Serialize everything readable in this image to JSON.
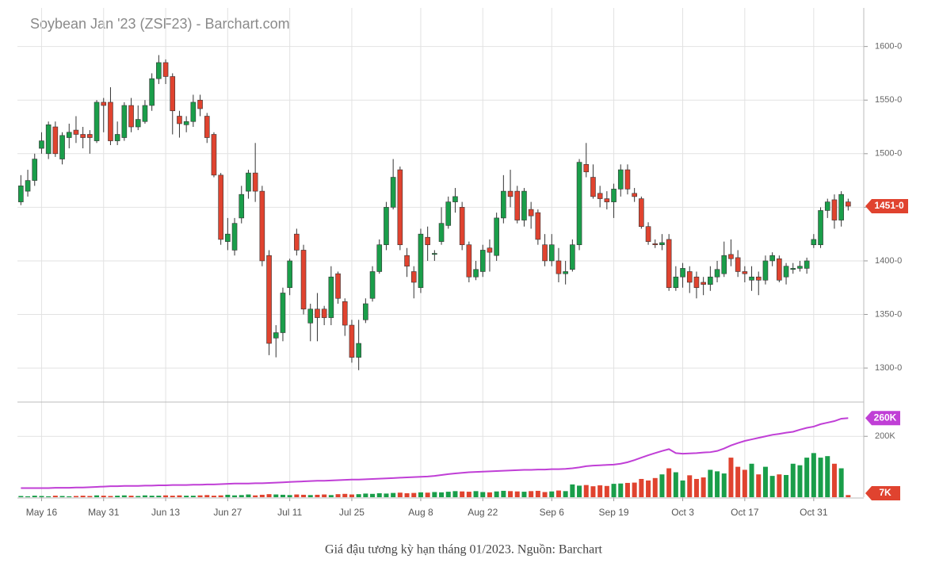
{
  "chart_data": [
    {
      "type": "candlestick",
      "title": "Soybean Jan '23 (ZSF23) - Barchart.com",
      "categories": [
        null,
        null,
        null,
        "May 16",
        null,
        null,
        null,
        null,
        null,
        null,
        null,
        null,
        "May 31",
        null,
        null,
        null,
        null,
        null,
        null,
        null,
        null,
        "Jun 13",
        null,
        null,
        null,
        null,
        null,
        null,
        null,
        null,
        "Jun 27",
        null,
        null,
        null,
        null,
        null,
        null,
        null,
        null,
        "Jul 11",
        null,
        null,
        null,
        null,
        null,
        null,
        null,
        null,
        "Jul 25",
        null,
        null,
        null,
        null,
        null,
        null,
        null,
        null,
        null,
        "Aug 8",
        null,
        null,
        null,
        null,
        null,
        null,
        null,
        null,
        "Aug 22",
        null,
        null,
        null,
        null,
        null,
        null,
        null,
        null,
        null,
        "Sep 6",
        null,
        null,
        null,
        null,
        null,
        null,
        null,
        null,
        "Sep 19",
        null,
        null,
        null,
        null,
        null,
        null,
        null,
        null,
        null,
        "Oct 3",
        null,
        null,
        null,
        null,
        null,
        null,
        null,
        null,
        "Oct 17",
        null,
        null,
        null,
        null,
        null,
        null,
        null,
        null,
        null,
        "Oct 31",
        null,
        null,
        null,
        null,
        null
      ],
      "open": [
        1455,
        1465,
        1475,
        1505,
        1500,
        1525,
        1495,
        1515,
        1522,
        1518,
        1518,
        1512,
        1548,
        1548,
        1512,
        1515,
        1545,
        1525,
        1530,
        1545,
        1570,
        1585,
        1572,
        1535,
        1527,
        1530,
        1550,
        1535,
        1518,
        1480,
        1418,
        1410,
        1440,
        1465,
        1482,
        1465,
        1405,
        1328,
        1333,
        1375,
        1425,
        1410,
        1342,
        1355,
        1355,
        1347,
        1388,
        1362,
        1340,
        1310,
        1345,
        1365,
        1390,
        1415,
        1450,
        1485,
        1405,
        1390,
        1375,
        1422,
        1406,
        1418,
        1433,
        1455,
        1450,
        1415,
        1385,
        1390,
        1412,
        1405,
        1440,
        1465,
        1465,
        1438,
        1448,
        1445,
        1415,
        1400,
        1400,
        1388,
        1392,
        1415,
        1490,
        1478,
        1463,
        1458,
        1455,
        1467,
        1485,
        1463,
        1458,
        1432,
        1416,
        1415,
        1420,
        1375,
        1385,
        1390,
        1385,
        1380,
        1378,
        1385,
        1388,
        1406,
        1403,
        1390,
        1382,
        1385,
        1382,
        1400,
        1402,
        1385,
        1392,
        1393,
        1393,
        1415,
        1415,
        1447,
        1457,
        1438,
        1455
      ],
      "high": [
        1480,
        1485,
        1500,
        1520,
        1530,
        1530,
        1520,
        1528,
        1535,
        1525,
        1522,
        1550,
        1552,
        1562,
        1530,
        1548,
        1552,
        1545,
        1550,
        1575,
        1592,
        1588,
        1575,
        1540,
        1535,
        1555,
        1555,
        1538,
        1520,
        1482,
        1440,
        1440,
        1470,
        1485,
        1510,
        1470,
        1410,
        1340,
        1375,
        1402,
        1430,
        1415,
        1360,
        1370,
        1358,
        1395,
        1390,
        1365,
        1345,
        1345,
        1365,
        1395,
        1420,
        1455,
        1495,
        1488,
        1412,
        1395,
        1430,
        1432,
        1410,
        1450,
        1460,
        1468,
        1455,
        1418,
        1400,
        1415,
        1420,
        1445,
        1480,
        1485,
        1470,
        1468,
        1455,
        1448,
        1425,
        1425,
        1412,
        1400,
        1420,
        1495,
        1510,
        1490,
        1470,
        1465,
        1472,
        1490,
        1490,
        1468,
        1460,
        1436,
        1420,
        1425,
        1425,
        1395,
        1398,
        1395,
        1390,
        1385,
        1395,
        1400,
        1418,
        1420,
        1410,
        1395,
        1395,
        1390,
        1405,
        1408,
        1405,
        1398,
        1398,
        1400,
        1403,
        1425,
        1450,
        1458,
        1462,
        1465,
        1458
      ],
      "low": [
        1452,
        1460,
        1470,
        1500,
        1495,
        1497,
        1490,
        1505,
        1510,
        1505,
        1500,
        1510,
        1520,
        1508,
        1508,
        1512,
        1520,
        1522,
        1528,
        1540,
        1565,
        1565,
        1518,
        1515,
        1520,
        1525,
        1535,
        1510,
        1478,
        1415,
        1410,
        1405,
        1435,
        1458,
        1455,
        1395,
        1312,
        1310,
        1325,
        1368,
        1405,
        1350,
        1325,
        1325,
        1340,
        1340,
        1360,
        1330,
        1305,
        1298,
        1342,
        1362,
        1388,
        1410,
        1448,
        1410,
        1385,
        1365,
        1370,
        1400,
        1400,
        1415,
        1430,
        1445,
        1410,
        1380,
        1382,
        1385,
        1390,
        1400,
        1435,
        1450,
        1435,
        1432,
        1430,
        1415,
        1395,
        1395,
        1380,
        1378,
        1390,
        1410,
        1478,
        1458,
        1450,
        1448,
        1440,
        1460,
        1462,
        1455,
        1430,
        1415,
        1412,
        1410,
        1372,
        1372,
        1375,
        1370,
        1365,
        1368,
        1372,
        1380,
        1385,
        1395,
        1385,
        1380,
        1372,
        1368,
        1378,
        1395,
        1380,
        1378,
        1388,
        1390,
        1388,
        1412,
        1412,
        1440,
        1430,
        1432,
        1447
      ],
      "close": [
        1470,
        1475,
        1495,
        1512,
        1527,
        1500,
        1517,
        1520,
        1518,
        1515,
        1515,
        1548,
        1545,
        1512,
        1518,
        1545,
        1525,
        1532,
        1545,
        1570,
        1585,
        1572,
        1540,
        1528,
        1530,
        1548,
        1542,
        1515,
        1480,
        1420,
        1425,
        1435,
        1462,
        1482,
        1465,
        1400,
        1323,
        1333,
        1370,
        1400,
        1410,
        1355,
        1355,
        1347,
        1347,
        1385,
        1365,
        1340,
        1310,
        1323,
        1360,
        1390,
        1415,
        1450,
        1478,
        1415,
        1395,
        1380,
        1425,
        1415,
        1407,
        1435,
        1455,
        1460,
        1415,
        1385,
        1392,
        1410,
        1408,
        1440,
        1465,
        1460,
        1438,
        1465,
        1442,
        1420,
        1400,
        1415,
        1388,
        1390,
        1415,
        1492,
        1483,
        1460,
        1458,
        1455,
        1467,
        1485,
        1467,
        1460,
        1432,
        1418,
        1415,
        1417,
        1375,
        1385,
        1393,
        1380,
        1375,
        1378,
        1385,
        1392,
        1405,
        1402,
        1390,
        1388,
        1385,
        1382,
        1400,
        1405,
        1382,
        1395,
        1393,
        1395,
        1400,
        1420,
        1447,
        1455,
        1438,
        1462,
        1451
      ],
      "last_label": "1451-0",
      "up_color": "#1a9e4a",
      "down_color": "#e0432f",
      "ylim": [
        1269,
        1636
      ],
      "yticks": [
        {
          "value": 1300,
          "label": "1300-0"
        },
        {
          "value": 1350,
          "label": "1350-0"
        },
        {
          "value": 1400,
          "label": "1400-0"
        },
        {
          "value": 1450,
          "label": "1450-0"
        },
        {
          "value": 1500,
          "label": "1500-0"
        },
        {
          "value": 1550,
          "label": "1550-0"
        },
        {
          "value": 1600,
          "label": "1600-0"
        }
      ],
      "grid": true
    },
    {
      "type": "volume",
      "series": [
        {
          "type": "bar",
          "last_label": "7K",
          "color": "#e0432f",
          "values": [
            4000,
            3000,
            5000,
            4000,
            3000,
            5000,
            4000,
            3000,
            4000,
            5000,
            4000,
            6000,
            5000,
            4000,
            5000,
            6000,
            5000,
            4000,
            6000,
            5000,
            5000,
            6000,
            5000,
            6000,
            5000,
            5000,
            6000,
            7000,
            5000,
            6000,
            8000,
            6000,
            7000,
            9000,
            6000,
            8000,
            10000,
            9000,
            8000,
            7000,
            9000,
            8000,
            7000,
            8000,
            9000,
            7000,
            10000,
            11000,
            9000,
            10000,
            12000,
            11000,
            13000,
            12000,
            14000,
            15000,
            13000,
            14000,
            16000,
            15000,
            17000,
            16000,
            18000,
            20000,
            19000,
            18000,
            20000,
            17000,
            16000,
            19000,
            21000,
            20000,
            19000,
            18000,
            20000,
            21000,
            17000,
            19000,
            22000,
            20000,
            42000,
            38000,
            40000,
            36000,
            39000,
            37000,
            44000,
            45000,
            47000,
            48000,
            60000,
            55000,
            63000,
            75000,
            95000,
            82000,
            55000,
            72000,
            60000,
            65000,
            90000,
            85000,
            78000,
            130000,
            100000,
            90000,
            110000,
            75000,
            100000,
            70000,
            75000,
            73000,
            110000,
            105000,
            130000,
            145000,
            130000,
            135000,
            110000,
            95000,
            7000
          ]
        },
        {
          "type": "line",
          "last_label": "260K",
          "color": "#c03fd6",
          "values": [
            30000,
            30000,
            30000,
            30000,
            30000,
            31000,
            31000,
            31000,
            32000,
            32000,
            33000,
            34000,
            35000,
            36000,
            36000,
            37000,
            37000,
            37000,
            38000,
            38000,
            39000,
            39000,
            40000,
            40000,
            40000,
            41000,
            41000,
            42000,
            42000,
            43000,
            44000,
            45000,
            45000,
            45000,
            46000,
            46000,
            47000,
            48000,
            49000,
            50000,
            51000,
            52000,
            53000,
            54000,
            54000,
            55000,
            56000,
            57000,
            58000,
            58000,
            59000,
            60000,
            61000,
            62000,
            63000,
            64000,
            65000,
            66000,
            67000,
            68000,
            70000,
            73000,
            76000,
            78000,
            80000,
            82000,
            83000,
            84000,
            85000,
            86000,
            87000,
            88000,
            89000,
            90000,
            90000,
            91000,
            91000,
            92000,
            92000,
            93000,
            95000,
            98000,
            102000,
            104000,
            105000,
            106000,
            107000,
            110000,
            115000,
            122000,
            130000,
            138000,
            145000,
            152000,
            158000,
            145000,
            143000,
            144000,
            145000,
            147000,
            148000,
            152000,
            160000,
            170000,
            178000,
            185000,
            190000,
            195000,
            200000,
            205000,
            208000,
            212000,
            215000,
            222000,
            228000,
            232000,
            240000,
            245000,
            250000,
            258000,
            260000
          ]
        }
      ],
      "ylim": [
        0,
        310000
      ],
      "yticks": [
        {
          "value": 200000,
          "label": "200K"
        }
      ]
    }
  ],
  "caption": "Giá đậu tương kỳ hạn tháng 01/2023. Nguồn: Barchart"
}
